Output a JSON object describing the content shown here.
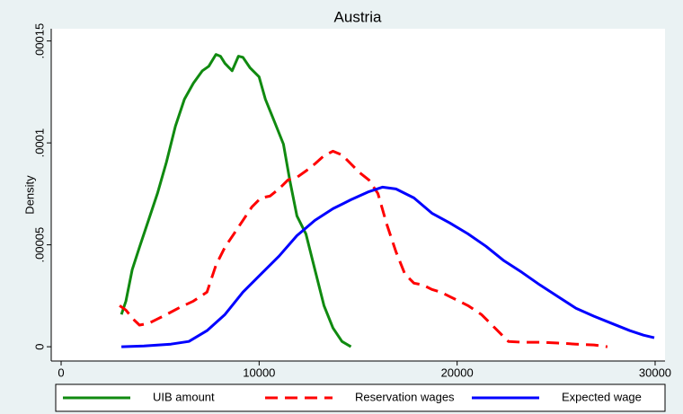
{
  "chart_data": {
    "type": "line",
    "title": "Austria",
    "y_label": "Density",
    "xlim": [
      -500,
      30500
    ],
    "ylim": [
      -7e-06,
      0.000156
    ],
    "xticks": [
      0,
      10000,
      20000,
      30000
    ],
    "yticks": [
      {
        "value": 0,
        "label": "0"
      },
      {
        "value": 5e-05,
        "label": ".00005"
      },
      {
        "value": 0.0001,
        "label": ".0001"
      },
      {
        "value": 0.00015,
        "label": ".00015"
      }
    ],
    "series": [
      {
        "name": "UIB amount",
        "color": "#108a10",
        "dash": "solid",
        "x": [
          3045,
          3273,
          3591,
          3955,
          4409,
          4864,
          5318,
          5773,
          6227,
          6682,
          7136,
          7455,
          7818,
          8045,
          8273,
          8636,
          8955,
          9182,
          9545,
          10000,
          10318,
          10773,
          11227,
          11545,
          11909,
          12364,
          12818,
          13273,
          13727,
          14182,
          14636
        ],
        "values": [
          1.58e-05,
          2.24e-05,
          3.78e-05,
          4.88e-05,
          6.2e-05,
          7.52e-05,
          9.06e-05,
          0.0001082,
          0.0001214,
          0.0001293,
          0.0001354,
          0.0001376,
          0.0001434,
          0.0001425,
          0.000139,
          0.0001354,
          0.0001425,
          0.000142,
          0.0001368,
          0.0001324,
          0.0001214,
          0.0001104,
          9.94e-05,
          8.18e-05,
          6.42e-05,
          5.54e-05,
          3.78e-05,
          2.02e-05,
          9.2e-06,
          2.6e-06,
          0
        ]
      },
      {
        "name": "Reservation wages",
        "color": "#ff0000",
        "dash": "dashed",
        "x": [
          2955,
          3273,
          3636,
          3955,
          4409,
          4864,
          5318,
          6000,
          6682,
          7364,
          7818,
          8273,
          8727,
          9182,
          9636,
          10091,
          10545,
          11000,
          11455,
          11909,
          12364,
          12818,
          13273,
          13727,
          14182,
          14636,
          15091,
          15545,
          16000,
          16455,
          16909,
          17364,
          17818,
          18273,
          18727,
          19182,
          19636,
          20091,
          20545,
          21227,
          21909,
          22591,
          23273,
          24182,
          25091,
          26000,
          26909,
          27591
        ],
        "values": [
          2.02e-05,
          1.8e-05,
          1.36e-05,
          1.06e-05,
          1.14e-05,
          1.36e-05,
          1.58e-05,
          1.93e-05,
          2.24e-05,
          2.68e-05,
          4e-05,
          4.88e-05,
          5.54e-05,
          6.2e-05,
          6.86e-05,
          7.3e-05,
          7.39e-05,
          7.74e-05,
          8.18e-05,
          8.31e-05,
          8.62e-05,
          8.97e-05,
          9.37e-05,
          9.59e-05,
          9.41e-05,
          8.97e-05,
          8.53e-05,
          8.18e-05,
          7.52e-05,
          5.98e-05,
          4.66e-05,
          3.56e-05,
          3.12e-05,
          3.03e-05,
          2.81e-05,
          2.68e-05,
          2.46e-05,
          2.24e-05,
          2.02e-05,
          1.58e-05,
          9.2e-06,
          2.6e-06,
          2.2e-06,
          2.2e-06,
          1.8e-06,
          1.3e-06,
          9e-07,
          0
        ]
      },
      {
        "name": "Expected wage",
        "color": "#0000ff",
        "dash": "solid",
        "x": [
          3045,
          4182,
          5545,
          6455,
          7364,
          8273,
          9182,
          10091,
          11000,
          11909,
          12818,
          13727,
          14636,
          15545,
          16227,
          16909,
          17818,
          18727,
          19636,
          20545,
          21455,
          22364,
          23273,
          24182,
          25091,
          26000,
          26909,
          27818,
          28727,
          29409,
          29955
        ],
        "values": [
          0,
          4e-07,
          1.3e-06,
          2.6e-06,
          7.9e-06,
          1.58e-05,
          2.68e-05,
          3.56e-05,
          4.44e-05,
          5.45e-05,
          6.2e-05,
          6.77e-05,
          7.21e-05,
          7.61e-05,
          7.83e-05,
          7.74e-05,
          7.3e-05,
          6.55e-05,
          6.07e-05,
          5.54e-05,
          4.93e-05,
          4.22e-05,
          3.65e-05,
          3.03e-05,
          2.46e-05,
          1.89e-05,
          1.5e-05,
          1.14e-05,
          7.9e-06,
          5.7e-06,
          4.4e-06
        ]
      }
    ]
  }
}
